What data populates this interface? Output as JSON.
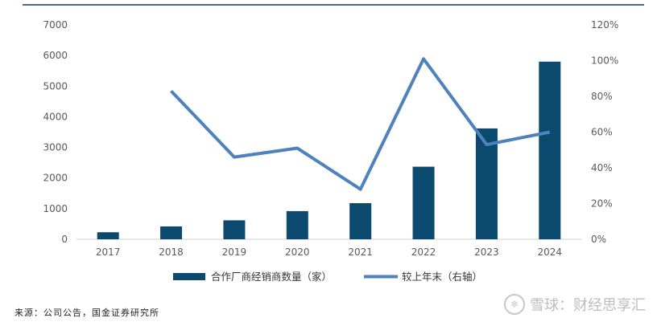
{
  "chart_data": {
    "type": "bar",
    "categories": [
      "2017",
      "2018",
      "2019",
      "2020",
      "2021",
      "2022",
      "2023",
      "2024"
    ],
    "series": [
      {
        "name": "合作厂商经销商数量（家）",
        "type": "bar",
        "axis": "left",
        "color": "#0b4a6e",
        "values": [
          230,
          420,
          620,
          920,
          1180,
          2370,
          3620,
          5800
        ]
      },
      {
        "name": "较上年末（右轴）",
        "type": "line",
        "axis": "right",
        "color": "#4f81bd",
        "values": [
          null,
          83,
          46,
          51,
          28,
          101,
          53,
          60
        ]
      }
    ],
    "y_left": {
      "lim": [
        0,
        7000
      ],
      "ticks": [
        "0",
        "1000",
        "2000",
        "3000",
        "4000",
        "5000",
        "6000",
        "7000"
      ]
    },
    "y_right": {
      "lim": [
        0,
        120
      ],
      "ticks": [
        "0%",
        "20%",
        "40%",
        "60%",
        "80%",
        "100%",
        "120%"
      ]
    },
    "legend_position": "bottom",
    "grid": false
  },
  "source_text": "来源：公司公告，国金证券研究所",
  "watermark_text": "雪球：财经思享汇"
}
